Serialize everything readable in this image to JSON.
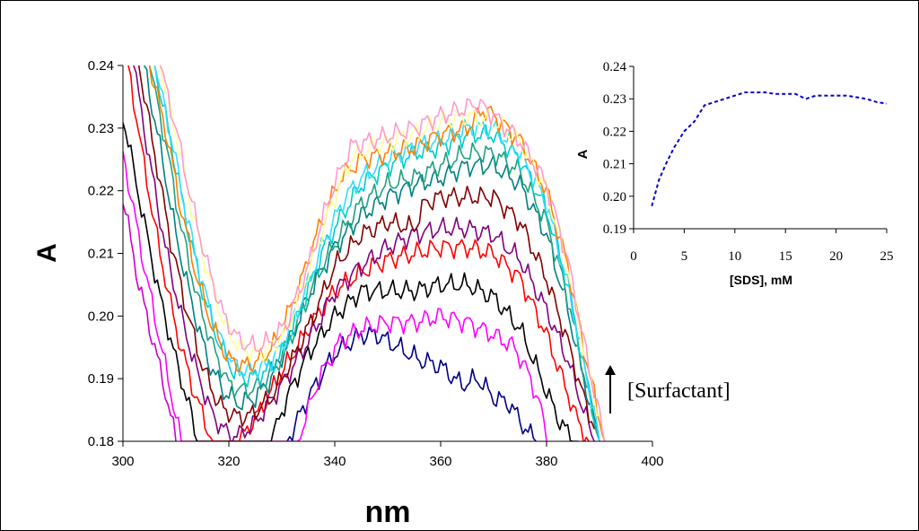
{
  "chart_data": [
    {
      "type": "line",
      "title": "",
      "xlabel": "nm",
      "ylabel": "A",
      "xlim": [
        300,
        400
      ],
      "ylim": [
        0.18,
        0.24
      ],
      "x_ticks": [
        "300",
        "320",
        "340",
        "360",
        "380",
        "400"
      ],
      "y_ticks": [
        "0.18",
        "0.19",
        "0.20",
        "0.21",
        "0.22",
        "0.23",
        "0.24"
      ],
      "grid": false,
      "legend": "none",
      "annotation": {
        "text": "[Surfactant]",
        "arrow": "up"
      },
      "series": [
        {
          "color": "#cc00cc",
          "x": [
            300,
            303,
            306,
            308,
            310
          ],
          "values": [
            0.219,
            0.205,
            0.195,
            0.188,
            0.18
          ]
        },
        {
          "color": "#000080",
          "x": [
            331,
            335,
            340,
            345,
            348,
            352,
            356,
            360,
            364,
            367,
            370,
            373,
            376,
            378
          ],
          "values": [
            0.18,
            0.187,
            0.194,
            0.197,
            0.197,
            0.195,
            0.193,
            0.192,
            0.189,
            0.19,
            0.187,
            0.186,
            0.182,
            0.18
          ]
        },
        {
          "color": "#ff00ff",
          "x": [
            300,
            304,
            307,
            310,
            311,
            333,
            337,
            341,
            345,
            350,
            355,
            360,
            365,
            370,
            374,
            377,
            379,
            380
          ],
          "values": [
            0.226,
            0.208,
            0.196,
            0.184,
            0.18,
            0.18,
            0.19,
            0.196,
            0.198,
            0.199,
            0.199,
            0.2,
            0.199,
            0.197,
            0.195,
            0.19,
            0.185,
            0.18
          ]
        },
        {
          "color": "#000000",
          "x": [
            300,
            304,
            307,
            310,
            313,
            314,
            328,
            331,
            335,
            340,
            345,
            350,
            355,
            360,
            365,
            370,
            375,
            379,
            382,
            385,
            386
          ],
          "values": [
            0.232,
            0.215,
            0.203,
            0.193,
            0.184,
            0.18,
            0.18,
            0.187,
            0.194,
            0.2,
            0.204,
            0.204,
            0.204,
            0.205,
            0.205,
            0.203,
            0.198,
            0.19,
            0.184,
            0.18,
            0.18
          ]
        },
        {
          "color": "#ff0000",
          "x": [
            301,
            304,
            307,
            310,
            313,
            316,
            317,
            322,
            326,
            330,
            335,
            340,
            345,
            350,
            355,
            360,
            365,
            370,
            375,
            380,
            383,
            386,
            388
          ],
          "values": [
            0.24,
            0.224,
            0.21,
            0.198,
            0.189,
            0.182,
            0.18,
            0.18,
            0.185,
            0.191,
            0.198,
            0.204,
            0.207,
            0.209,
            0.21,
            0.211,
            0.211,
            0.21,
            0.206,
            0.197,
            0.19,
            0.183,
            0.18
          ]
        },
        {
          "color": "#800080",
          "x": [
            302,
            305,
            308,
            311,
            314,
            317,
            320,
            322,
            325,
            330,
            335,
            340,
            345,
            350,
            355,
            360,
            365,
            370,
            375,
            380,
            384,
            387,
            389
          ],
          "values": [
            0.24,
            0.225,
            0.211,
            0.2,
            0.191,
            0.184,
            0.181,
            0.181,
            0.183,
            0.189,
            0.196,
            0.204,
            0.208,
            0.211,
            0.213,
            0.214,
            0.214,
            0.213,
            0.209,
            0.201,
            0.193,
            0.185,
            0.18
          ]
        },
        {
          "color": "#800000",
          "x": [
            303,
            306,
            309,
            312,
            315,
            318,
            321,
            324,
            328,
            332,
            336,
            340,
            345,
            350,
            355,
            357,
            360,
            365,
            370,
            375,
            380,
            384,
            387,
            390
          ],
          "values": [
            0.24,
            0.226,
            0.212,
            0.201,
            0.192,
            0.186,
            0.184,
            0.184,
            0.187,
            0.193,
            0.2,
            0.208,
            0.213,
            0.215,
            0.214,
            0.218,
            0.219,
            0.219,
            0.219,
            0.215,
            0.206,
            0.196,
            0.187,
            0.18
          ]
        },
        {
          "color": "#008080",
          "x": [
            304,
            307,
            310,
            313,
            316,
            319,
            322,
            325,
            328,
            332,
            336,
            340,
            345,
            350,
            355,
            360,
            365,
            370,
            375,
            380,
            384,
            387,
            390
          ],
          "values": [
            0.24,
            0.227,
            0.213,
            0.202,
            0.193,
            0.188,
            0.186,
            0.187,
            0.19,
            0.197,
            0.205,
            0.211,
            0.216,
            0.219,
            0.221,
            0.222,
            0.224,
            0.224,
            0.221,
            0.213,
            0.201,
            0.19,
            0.18
          ]
        },
        {
          "color": "#20a080",
          "x": [
            305,
            308,
            311,
            314,
            317,
            320,
            323,
            326,
            329,
            333,
            337,
            341,
            345,
            350,
            355,
            360,
            365,
            370,
            375,
            380,
            384,
            387,
            390
          ],
          "values": [
            0.24,
            0.228,
            0.214,
            0.203,
            0.195,
            0.189,
            0.188,
            0.189,
            0.192,
            0.199,
            0.207,
            0.213,
            0.218,
            0.221,
            0.222,
            0.224,
            0.226,
            0.226,
            0.223,
            0.215,
            0.203,
            0.191,
            0.18
          ]
        },
        {
          "color": "#00cccc",
          "x": [
            306,
            309,
            312,
            315,
            318,
            321,
            324,
            327,
            330,
            334,
            338,
            342,
            345,
            350,
            355,
            360,
            365,
            370,
            375,
            380,
            384,
            387,
            390
          ],
          "values": [
            0.24,
            0.228,
            0.215,
            0.204,
            0.196,
            0.191,
            0.19,
            0.191,
            0.194,
            0.202,
            0.211,
            0.217,
            0.221,
            0.224,
            0.226,
            0.227,
            0.229,
            0.229,
            0.225,
            0.217,
            0.205,
            0.192,
            0.18
          ]
        },
        {
          "color": "#33ddff",
          "x": [
            306,
            309,
            312,
            315,
            318,
            321,
            324,
            327,
            330,
            334,
            338,
            342,
            345,
            350,
            355,
            360,
            365,
            370,
            375,
            380,
            384,
            387,
            390
          ],
          "values": [
            0.24,
            0.229,
            0.216,
            0.205,
            0.197,
            0.192,
            0.191,
            0.192,
            0.195,
            0.203,
            0.212,
            0.219,
            0.222,
            0.225,
            0.227,
            0.228,
            0.23,
            0.23,
            0.226,
            0.218,
            0.205,
            0.193,
            0.18
          ]
        },
        {
          "color": "#ff8000",
          "x": [
            305,
            308,
            311,
            314,
            317,
            320,
            323,
            326,
            329,
            333,
            337,
            341,
            345,
            350,
            355,
            360,
            365,
            368,
            370,
            375,
            380,
            384,
            387,
            391
          ],
          "values": [
            0.24,
            0.23,
            0.217,
            0.206,
            0.198,
            0.193,
            0.192,
            0.193,
            0.196,
            0.204,
            0.214,
            0.222,
            0.225,
            0.226,
            0.227,
            0.229,
            0.23,
            0.233,
            0.232,
            0.228,
            0.22,
            0.208,
            0.195,
            0.18
          ]
        },
        {
          "color": "#ffff99",
          "x": [
            307,
            310,
            313,
            316,
            319,
            322,
            325,
            328,
            331,
            335,
            339,
            343,
            347,
            351,
            355,
            360,
            365,
            370,
            375,
            380,
            384,
            387,
            391
          ],
          "values": [
            0.24,
            0.229,
            0.217,
            0.207,
            0.199,
            0.195,
            0.194,
            0.195,
            0.198,
            0.207,
            0.217,
            0.225,
            0.227,
            0.228,
            0.229,
            0.231,
            0.232,
            0.231,
            0.228,
            0.22,
            0.208,
            0.195,
            0.18
          ]
        },
        {
          "color": "#ff99cc",
          "x": [
            307,
            310,
            313,
            316,
            319,
            322,
            325,
            328,
            331,
            335,
            339,
            343,
            347,
            351,
            355,
            360,
            364,
            367,
            370,
            375,
            380,
            384,
            387,
            391
          ],
          "values": [
            0.24,
            0.23,
            0.218,
            0.208,
            0.2,
            0.196,
            0.195,
            0.196,
            0.199,
            0.208,
            0.219,
            0.227,
            0.228,
            0.229,
            0.23,
            0.232,
            0.233,
            0.234,
            0.232,
            0.228,
            0.221,
            0.209,
            0.196,
            0.18
          ]
        }
      ]
    },
    {
      "type": "line",
      "title": "",
      "xlabel": "[SDS], mM",
      "ylabel": "A",
      "xlim": [
        0,
        25
      ],
      "ylim": [
        0.19,
        0.24
      ],
      "x_ticks": [
        "0",
        "5",
        "10",
        "15",
        "20",
        "25"
      ],
      "y_ticks": [
        "0.19",
        "0.20",
        "0.21",
        "0.22",
        "0.23",
        "0.24"
      ],
      "grid": false,
      "legend": "none",
      "series": [
        {
          "color": "#0000cc",
          "style": "dashed",
          "x": [
            1.8,
            2.5,
            3.2,
            4,
            5,
            6,
            7,
            8,
            9,
            10,
            11,
            12,
            13,
            14,
            15,
            16,
            17,
            18,
            19,
            20,
            21,
            22,
            23,
            24,
            25
          ],
          "values": [
            0.197,
            0.205,
            0.21,
            0.215,
            0.22,
            0.223,
            0.228,
            0.229,
            0.23,
            0.231,
            0.232,
            0.232,
            0.232,
            0.2315,
            0.2315,
            0.2315,
            0.23,
            0.231,
            0.231,
            0.231,
            0.231,
            0.2305,
            0.23,
            0.229,
            0.2285
          ]
        }
      ]
    }
  ]
}
